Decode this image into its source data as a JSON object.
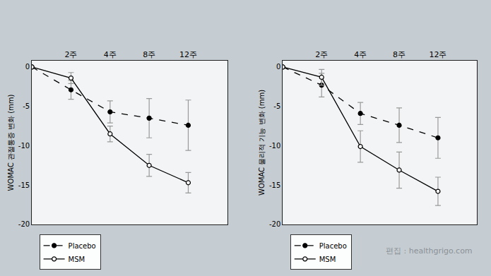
{
  "chart_data": [
    {
      "type": "line",
      "y_label": "WOMAC 관절통증 변화 (mm)",
      "categories": [
        null,
        "2주",
        "4주",
        "8주",
        "12주"
      ],
      "ylim": [
        -20,
        0.8
      ],
      "yticks": [
        0,
        -5,
        -10,
        -15,
        -20
      ],
      "grid": false,
      "legend": "lower left",
      "series": [
        {
          "name": "Placebo",
          "color": "#000000",
          "marker": "filled",
          "line_style": "dashed",
          "values": [
            0,
            -2.9,
            -5.7,
            -6.5,
            -7.4
          ],
          "error": [
            null,
            1.2,
            1.4,
            2.5,
            3.2
          ]
        },
        {
          "name": "MSM",
          "color": "#000000",
          "marker": "open",
          "line_style": "solid",
          "values": [
            0,
            -1.4,
            -8.5,
            -12.5,
            -14.7
          ],
          "error": [
            null,
            0.7,
            1.0,
            1.4,
            1.3
          ]
        }
      ]
    },
    {
      "type": "line",
      "y_label": "WOMAC 물리적 기능 변화 (mm)",
      "categories": [
        null,
        "2주",
        "4주",
        "8주",
        "12주"
      ],
      "ylim": [
        -20,
        0.8
      ],
      "yticks": [
        0,
        -5,
        -10,
        -15,
        -20
      ],
      "grid": false,
      "legend": "lower left",
      "series": [
        {
          "name": "Placebo",
          "color": "#000000",
          "marker": "filled",
          "line_style": "dashed",
          "values": [
            0,
            -2.3,
            -5.9,
            -7.4,
            -9.0
          ],
          "error": [
            null,
            1.5,
            1.4,
            2.2,
            2.6
          ]
        },
        {
          "name": "MSM",
          "color": "#000000",
          "marker": "open",
          "line_style": "solid",
          "values": [
            0,
            -1.3,
            -10.1,
            -13.1,
            -15.8
          ],
          "error": [
            null,
            1.0,
            2.0,
            2.3,
            1.8
          ]
        }
      ]
    }
  ],
  "footer": "편집 : healthgrigo.com"
}
